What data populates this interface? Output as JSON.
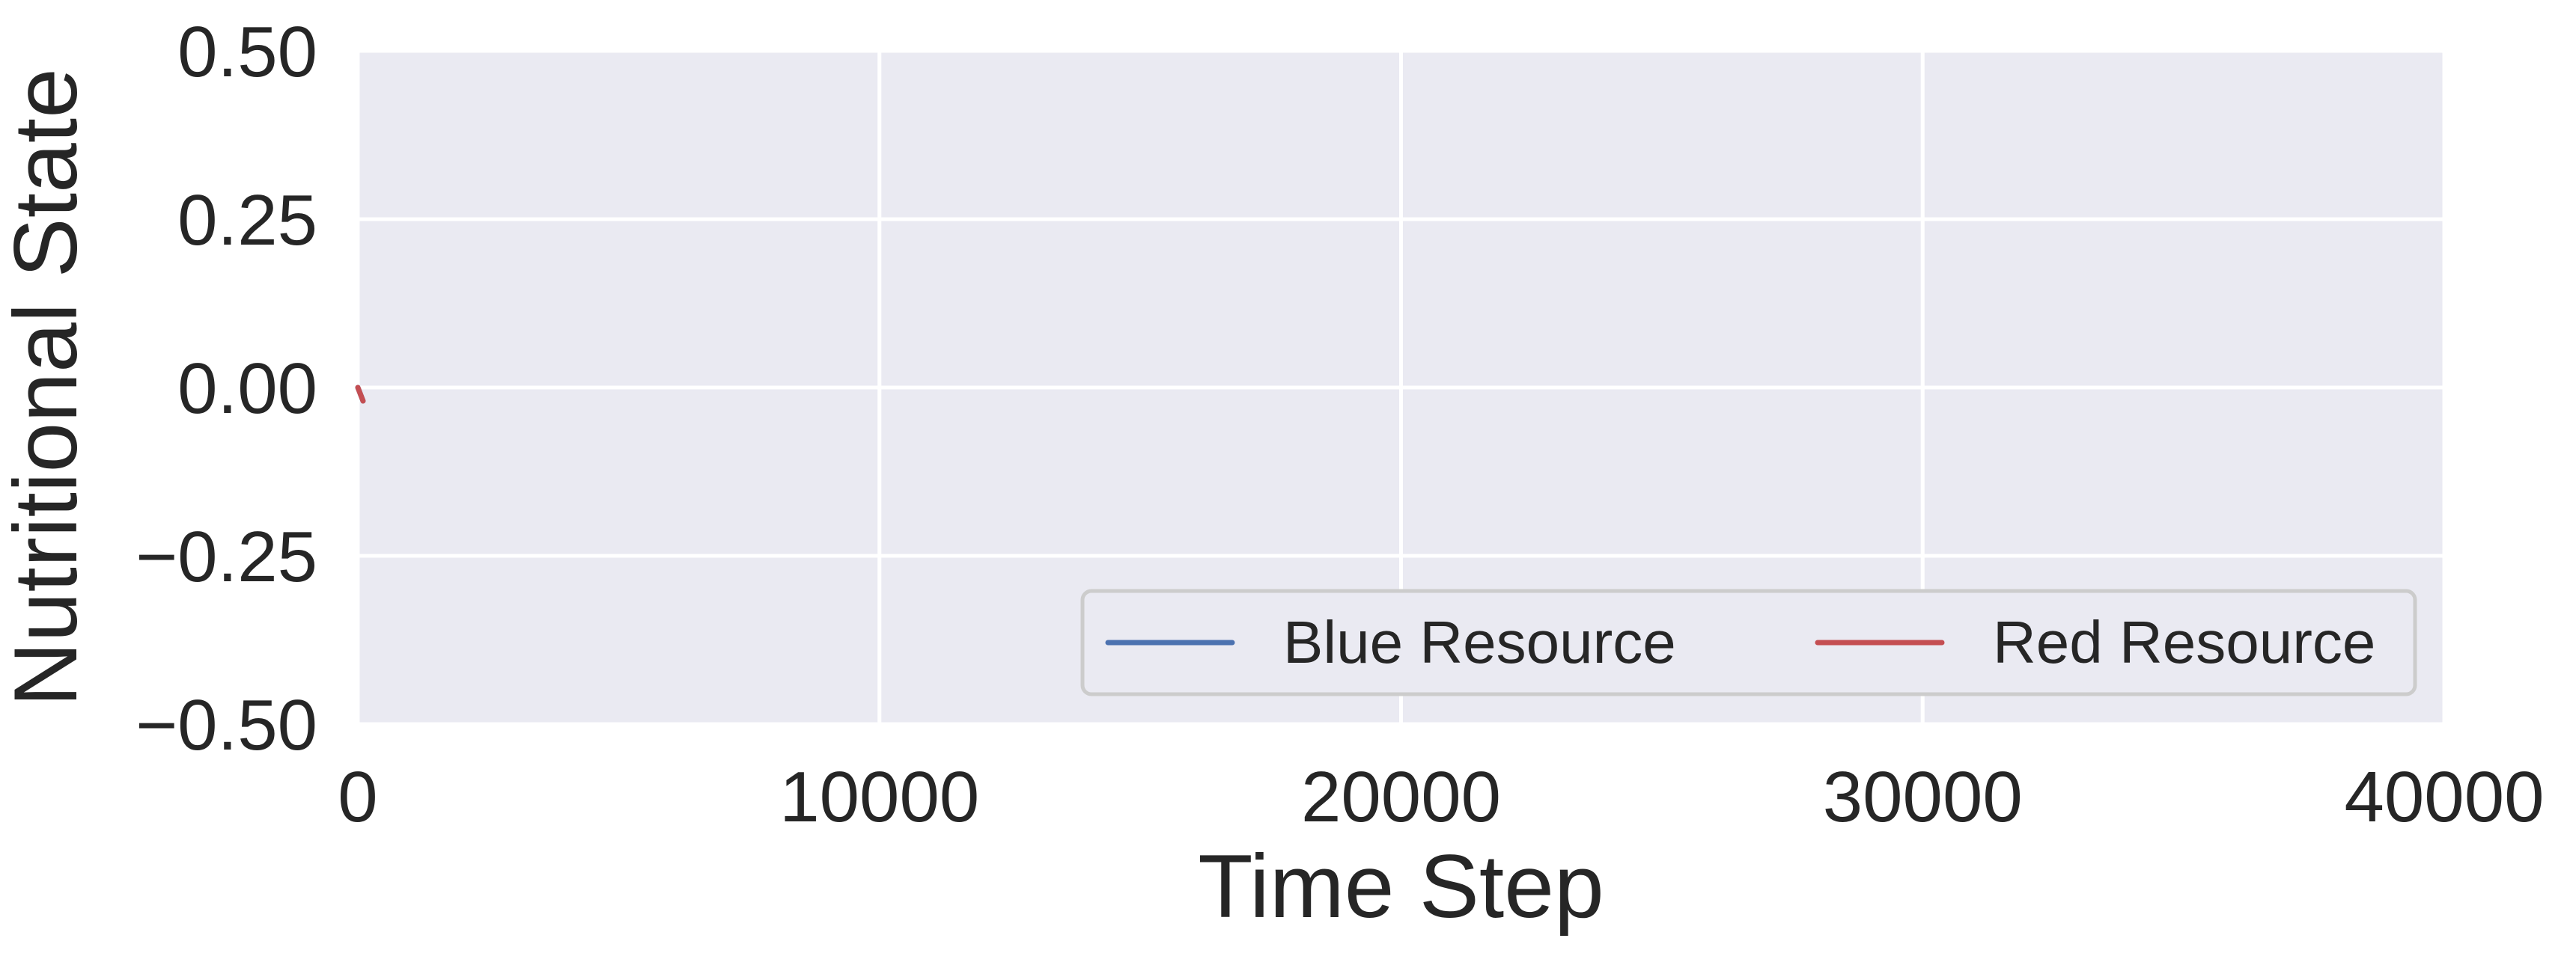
{
  "chart_data": {
    "type": "line",
    "title": "",
    "xlabel": "Time Step",
    "ylabel": "Nutritional State",
    "xlim": [
      0,
      40000
    ],
    "ylim": [
      -0.5,
      0.5
    ],
    "x_ticks": [
      0,
      10000,
      20000,
      30000,
      40000
    ],
    "x_tick_labels": [
      "0",
      "10000",
      "20000",
      "30000",
      "40000"
    ],
    "y_ticks": [
      -0.5,
      -0.25,
      0.0,
      0.25,
      0.5
    ],
    "y_tick_labels": [
      "−0.50",
      "−0.25",
      "0.00",
      "0.25",
      "0.50"
    ],
    "grid": true,
    "legend_position": "lower-right",
    "legend_columns": 2,
    "colors": {
      "axes_background": "#eaeaf2",
      "grid": "#ffffff",
      "text": "#262626",
      "legend_background": "#eaeaf2",
      "legend_border": "#cccccc"
    },
    "series": [
      {
        "name": "Blue Resource",
        "color": "#4c72b0",
        "x": [
          0,
          50,
          100
        ],
        "y": [
          0.0,
          -0.01,
          -0.02
        ]
      },
      {
        "name": "Red Resource",
        "color": "#c44e52",
        "x": [
          0,
          50,
          100
        ],
        "y": [
          0.0,
          -0.01,
          -0.02
        ]
      }
    ]
  }
}
